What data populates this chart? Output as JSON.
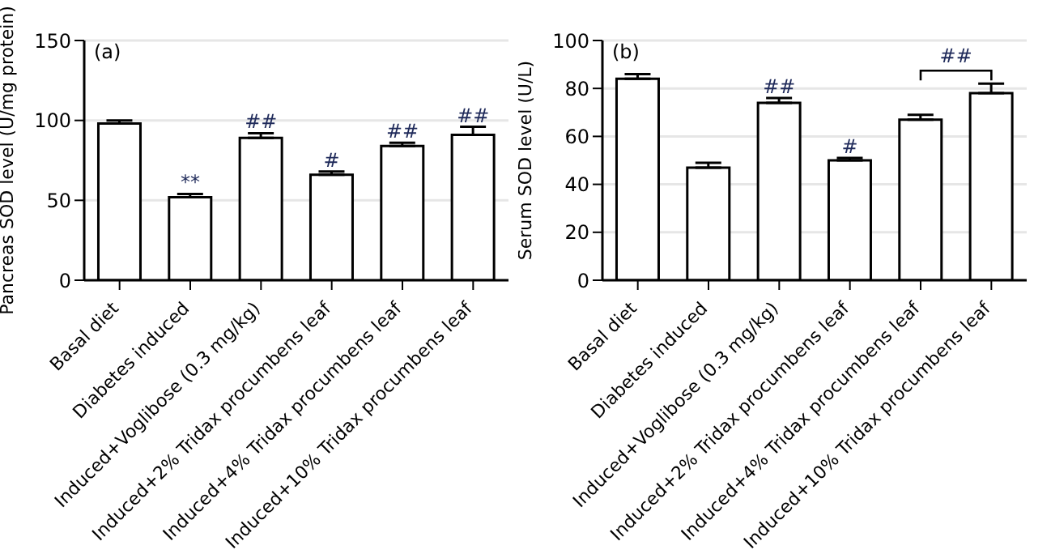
{
  "chart_data": [
    {
      "type": "bar",
      "ylabel": "Pancreas SOD level (U/mg protein)",
      "categories": [
        "Basal diet",
        "Diabetes induced",
        "Induced+Voglibose (0.3 mg/kg)",
        "Induced+2% Tridax procumbens leaf",
        "Induced+4% Tridax procumbens leaf",
        "Induced+10% Tridax procumbens leaf"
      ],
      "color": "#ffffff",
      "values": [
        98,
        52,
        89,
        66,
        84,
        91
      ],
      "errors": [
        [
          98,
          100
        ],
        [
          52,
          54
        ],
        [
          89,
          92
        ],
        [
          66,
          68
        ],
        [
          84,
          86
        ],
        [
          91,
          96
        ]
      ],
      "ylim": [
        0,
        150
      ],
      "yticks": [
        0,
        50,
        100,
        150
      ],
      "grid": "y",
      "annotations": [
        "(a)",
        {
          "text": "**",
          "x": "Diabetes induced",
          "y": 54
        },
        {
          "text": "##",
          "x": "Induced+Voglibose (0.3 mg/kg)",
          "y": 92
        },
        {
          "text": "#",
          "x": "Induced+2% Tridax procumbens leaf",
          "y": 68
        },
        {
          "text": "##",
          "x": "Induced+4% Tridax procumbens leaf",
          "y": 86
        },
        {
          "text": "##",
          "x": "Induced+10% Tridax procumbens leaf",
          "y": 96
        }
      ]
    },
    {
      "type": "bar",
      "ylabel": "Serum SOD level (U/L)",
      "categories": [
        "Basal diet",
        "Diabetes induced",
        "Induced+Voglibose (0.3 mg/kg)",
        "Induced+2% Tridax procumbens leaf",
        "Induced+4% Tridax procumbens leaf",
        "Induced+10% Tridax procumbens leaf"
      ],
      "color": "#ffffff",
      "values": [
        84,
        47,
        74,
        50,
        67,
        78
      ],
      "errors": [
        [
          84,
          86
        ],
        [
          47,
          49
        ],
        [
          74,
          76
        ],
        [
          50,
          51
        ],
        [
          67,
          69
        ],
        [
          78,
          82
        ]
      ],
      "ylim": [
        0,
        100
      ],
      "yticks": [
        0,
        20,
        40,
        60,
        80,
        100
      ],
      "grid": "y",
      "annotations": [
        "(b)",
        {
          "text": "##",
          "x": "Induced+Voglibose (0.3 mg/kg)",
          "y": 76
        },
        {
          "text": "#",
          "x": "Induced+2% Tridax procumbens leaf",
          "y": 51
        },
        "##"
      ]
    }
  ]
}
